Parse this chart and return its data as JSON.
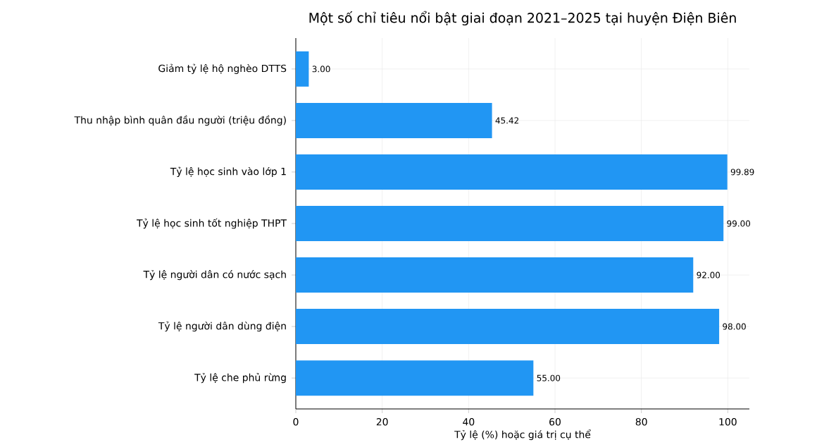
{
  "chart_data": {
    "type": "bar",
    "orientation": "horizontal",
    "title": "Một số chỉ tiêu nổi bật giai đoạn 2021–2025 tại huyện Điện Biên",
    "xlabel": "Tỷ lệ (%) hoặc giá trị cụ thể",
    "categories": [
      "Giảm tỷ lệ hộ nghèo DTTS",
      "Thu nhập bình quân đầu người (triệu đồng)",
      "Tỷ lệ học sinh vào lớp 1",
      "Tỷ lệ học sinh tốt nghiệp THPT",
      "Tỷ lệ người dân có nước sạch",
      "Tỷ lệ người dân dùng điện",
      "Tỷ lệ che phủ rừng"
    ],
    "values": [
      3.0,
      45.42,
      99.89,
      99.0,
      92.0,
      98.0,
      55.0
    ],
    "value_labels": [
      "3.00",
      "45.42",
      "99.89",
      "99.00",
      "92.00",
      "98.00",
      "55.00"
    ],
    "color": "#2196f3",
    "xlim": [
      0,
      105
    ],
    "xticks": [
      0,
      20,
      40,
      60,
      80,
      100
    ],
    "grid": true
  }
}
